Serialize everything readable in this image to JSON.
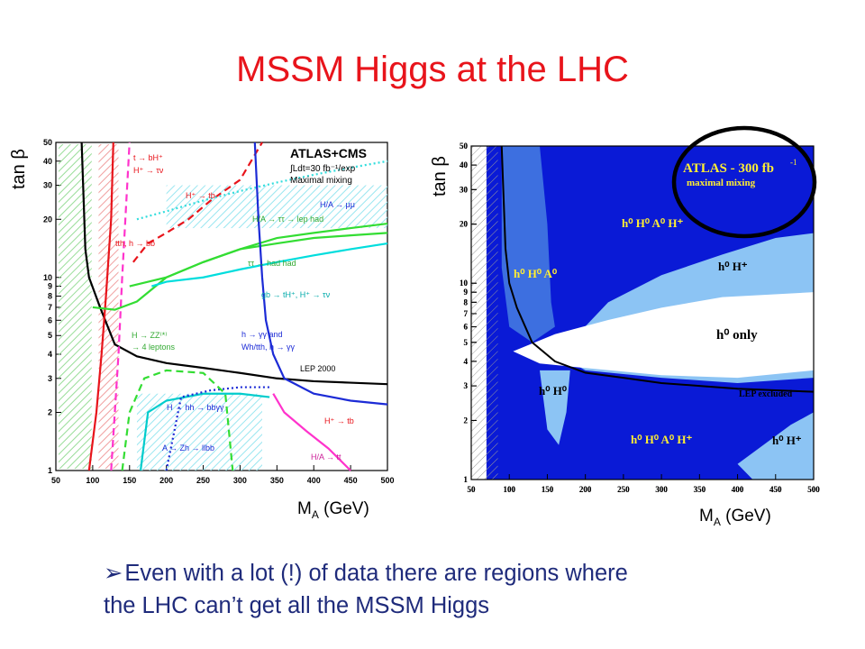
{
  "slide": {
    "title": "MSSM Higgs at the LHC",
    "bullet_marker": "➢",
    "bullet_line1": "Even with a lot (!) of data there are regions where",
    "bullet_line2": "the LHC can’t get all the MSSM Higgs",
    "colors": {
      "title": "#e8141b",
      "bullet": "#1f2b7b"
    }
  },
  "chart_data": [
    {
      "type": "line",
      "title": "ATLAS+CMS",
      "subtitle": "∫Ldt=30 fb⁻¹/exp",
      "subtitle2": "Maximal mixing",
      "ylabel": "tan β",
      "xlabel_main": "M",
      "xlabel_sub": "A",
      "xlabel_unit": " (GeV)",
      "xlim": [
        50,
        500
      ],
      "ylim": [
        1,
        50
      ],
      "yscale": "log",
      "x_ticks": [
        "50",
        "100",
        "150",
        "200",
        "250",
        "300",
        "350",
        "400",
        "450",
        "500"
      ],
      "y_ticks": [
        "1",
        "2",
        "3",
        "4",
        "5",
        "6",
        "7",
        "8",
        "9",
        "10",
        "20",
        "30",
        "40",
        "50"
      ],
      "annotations": [
        "t → bH⁺",
        "H⁺ → τν",
        "H⁺ → tb",
        "H/A → μμ",
        "H/A → ττ → lep had",
        "ττ → had had",
        "tth, h → bb",
        "gb → tH⁺, H⁺ → τν",
        "H → ZZ⁽*⁾",
        "→ 4 leptons",
        "h → γγ and",
        "Wh/tth, h → γγ",
        "LEP 2000",
        "H → hh → bbγγ",
        "A → Zh → llbb",
        "H⁺ → tb",
        "H/A → tt"
      ],
      "series": [
        {
          "name": "LEP 2000",
          "color": "#000000",
          "dash": "solid",
          "x": [
            85,
            90,
            95,
            110,
            130,
            160,
            200,
            250,
            300,
            350,
            400,
            450,
            500
          ],
          "y": [
            50,
            14,
            10,
            7,
            4.5,
            3.9,
            3.6,
            3.4,
            3.2,
            3.0,
            2.9,
            2.85,
            2.8
          ]
        },
        {
          "name": "t → bH⁺",
          "color": "#e8141b",
          "dash": "solid",
          "x": [
            95,
            105,
            112,
            118,
            125,
            128
          ],
          "y": [
            1,
            2,
            4,
            8,
            20,
            50
          ]
        },
        {
          "name": "H⁺ → tb",
          "color": "#e8141b",
          "dash": "dashed",
          "x": [
            155,
            175,
            200,
            230,
            260,
            300,
            330
          ],
          "y": [
            12,
            15,
            17,
            20,
            25,
            32,
            50
          ]
        },
        {
          "name": "tth, h → bb",
          "color": "#ff33cc",
          "dash": "dashed",
          "x": [
            125,
            130,
            135,
            140,
            150
          ],
          "y": [
            1,
            2,
            4,
            10,
            50
          ]
        },
        {
          "name": "H/A → ττ → lep had",
          "color": "#33dd33",
          "dash": "solid",
          "x": [
            100,
            130,
            160,
            200,
            250,
            300,
            350,
            400,
            450,
            500
          ],
          "y": [
            7,
            6.8,
            7.5,
            10,
            12,
            14,
            16,
            17,
            18,
            19
          ]
        },
        {
          "name": "ττ → had had",
          "color": "#33dd33",
          "dash": "solid",
          "x": [
            150,
            200,
            250,
            300,
            350,
            400,
            450,
            500
          ],
          "y": [
            9,
            10,
            12,
            14,
            15,
            16,
            16.5,
            17
          ]
        },
        {
          "name": "H/A → μμ",
          "color": "#33dddd",
          "dash": "dotted",
          "x": [
            160,
            200,
            250,
            300,
            350,
            400,
            450,
            500
          ],
          "y": [
            20,
            22,
            25,
            28,
            31,
            34,
            37,
            40
          ]
        },
        {
          "name": "gb → tH⁺, H⁺ → τν",
          "color": "#00dddd",
          "dash": "solid",
          "x": [
            180,
            200,
            250,
            300,
            350,
            400,
            450,
            500
          ],
          "y": [
            9,
            9.5,
            10,
            11,
            12,
            13,
            14,
            15
          ]
        },
        {
          "name": "h → γγ",
          "color": "#1c2bd6",
          "dash": "solid",
          "x": [
            320,
            325,
            330,
            335,
            345,
            360,
            400,
            450,
            500
          ],
          "y": [
            50,
            20,
            10,
            6,
            4,
            3,
            2.5,
            2.3,
            2.2
          ]
        },
        {
          "name": "A → Zh → llbb",
          "color": "#00cccc",
          "dash": "solid",
          "x": [
            165,
            175,
            200,
            250,
            300,
            340
          ],
          "y": [
            1,
            2,
            2.3,
            2.5,
            2.5,
            2.4
          ]
        },
        {
          "name": "H → hh → bbγγ",
          "color": "#1c2bd6",
          "dash": "dotted",
          "x": [
            200,
            220,
            260,
            300,
            340
          ],
          "y": [
            1,
            2.4,
            2.6,
            2.7,
            2.7
          ]
        },
        {
          "name": "H → ZZ⁽*⁾ → 4 leptons",
          "color": "#33dd33",
          "dash": "dashed",
          "x": [
            140,
            150,
            170,
            200,
            250,
            280,
            290
          ],
          "y": [
            1,
            2,
            3,
            3.3,
            3.2,
            2.5,
            1
          ]
        },
        {
          "name": "H/A → tt",
          "color": "#ff33cc",
          "dash": "solid",
          "x": [
            345,
            360,
            390,
            420,
            450
          ],
          "y": [
            2.5,
            2.0,
            1.6,
            1.3,
            1
          ]
        }
      ]
    },
    {
      "type": "area",
      "title": "ATLAS - 300 fb",
      "title_sup": "-1",
      "subtitle": "maximal mixing",
      "ylabel": "tan β",
      "xlabel_main": "M",
      "xlabel_sub": "A",
      "xlabel_unit": " (GeV)",
      "xlim": [
        50,
        500
      ],
      "ylim": [
        1,
        50
      ],
      "yscale": "log",
      "x_ticks": [
        "50",
        "100",
        "150",
        "200",
        "250",
        "300",
        "350",
        "400",
        "450",
        "500"
      ],
      "y_ticks": [
        "1",
        "2",
        "3",
        "4",
        "5",
        "6",
        "7",
        "8",
        "9",
        "10",
        "20",
        "30",
        "40",
        "50"
      ],
      "region_labels": [
        "h⁰ H⁰ A⁰ H⁺",
        "h⁰ H⁰ A⁰",
        "h⁰ H⁺",
        "h⁰ only",
        "h⁰ H⁰",
        "LEP excluded",
        "h⁰ H⁰ A⁰ H⁺",
        "h⁰ H⁺"
      ],
      "series": [
        {
          "name": "LEP excluded",
          "color": "#000000",
          "x": [
            90,
            95,
            100,
            110,
            130,
            160,
            200,
            250,
            300,
            350,
            400,
            450,
            500
          ],
          "y": [
            50,
            15,
            10,
            7.5,
            5,
            4,
            3.5,
            3.3,
            3.1,
            3.0,
            2.9,
            2.85,
            2.8
          ]
        }
      ],
      "colors": {
        "dark": "#0a1ad6",
        "medium": "#3d6fe0",
        "light": "#8cc4f4"
      },
      "highlight": "ellipse around legend"
    }
  ]
}
